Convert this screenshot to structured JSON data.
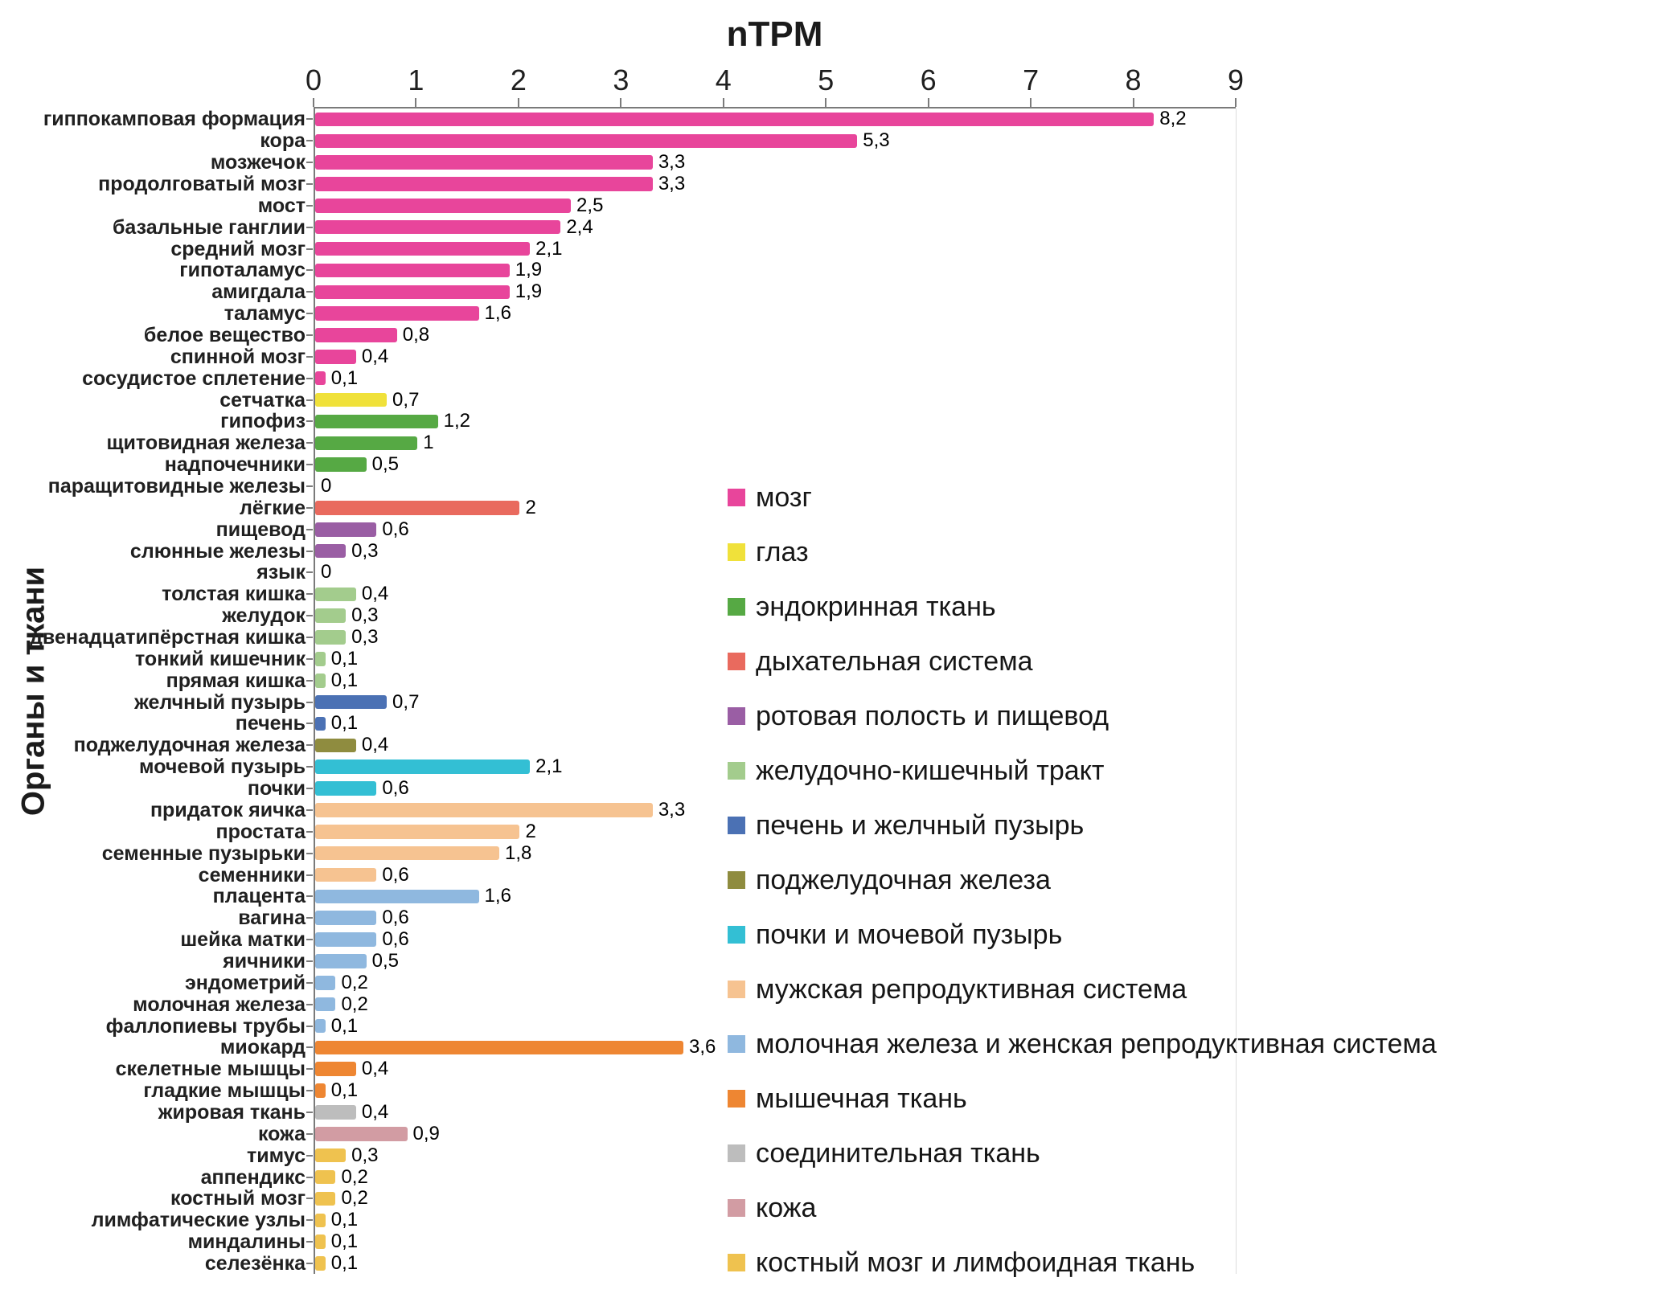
{
  "chart_data": {
    "type": "bar",
    "orientation": "horizontal",
    "title": "nTPM",
    "ylabel": "Органы и ткани",
    "xlabel": "nTPM",
    "xlim": [
      0,
      9
    ],
    "xticks": [
      0,
      1,
      2,
      3,
      4,
      5,
      6,
      7,
      8,
      9
    ],
    "grid": false,
    "legend_position": "inside-right",
    "legend": [
      {
        "label": "мозг",
        "color": "#E8459B"
      },
      {
        "label": "глаз",
        "color": "#F0E13A"
      },
      {
        "label": "эндокринная ткань",
        "color": "#56A944"
      },
      {
        "label": "дыхательная система",
        "color": "#E96A5E"
      },
      {
        "label": "ротовая полость и пищевод",
        "color": "#9A5EA4"
      },
      {
        "label": "желудочно-кишечный тракт",
        "color": "#A3CC8D"
      },
      {
        "label": "печень и желчный пузырь",
        "color": "#4B71B4"
      },
      {
        "label": "поджелудочная железа",
        "color": "#8F8C3F"
      },
      {
        "label": "почки и мочевой пузырь",
        "color": "#33BFD4"
      },
      {
        "label": "мужская репродуктивная система",
        "color": "#F6C391"
      },
      {
        "label": "молочная железа и женская репродуктивная система",
        "color": "#8FB8DF"
      },
      {
        "label": "мышечная ткань",
        "color": "#EE8632"
      },
      {
        "label": "соединительная ткань",
        "color": "#BDBDBD"
      },
      {
        "label": "кожа",
        "color": "#D29CA3"
      },
      {
        "label": "костный мозг и лимфоидная ткань",
        "color": "#EFC24F"
      }
    ],
    "bars": [
      {
        "label": "гиппокамповая формация",
        "value": 8.2,
        "display": "8,2",
        "group": "мозг"
      },
      {
        "label": "кора",
        "value": 5.3,
        "display": "5,3",
        "group": "мозг"
      },
      {
        "label": "мозжечок",
        "value": 3.3,
        "display": "3,3",
        "group": "мозг"
      },
      {
        "label": "продолговатый мозг",
        "value": 3.3,
        "display": "3,3",
        "group": "мозг"
      },
      {
        "label": "мост",
        "value": 2.5,
        "display": "2,5",
        "group": "мозг"
      },
      {
        "label": "базальные ганглии",
        "value": 2.4,
        "display": "2,4",
        "group": "мозг"
      },
      {
        "label": "средний мозг",
        "value": 2.1,
        "display": "2,1",
        "group": "мозг"
      },
      {
        "label": "гипоталамус",
        "value": 1.9,
        "display": "1,9",
        "group": "мозг"
      },
      {
        "label": "амигдала",
        "value": 1.9,
        "display": "1,9",
        "group": "мозг"
      },
      {
        "label": "таламус",
        "value": 1.6,
        "display": "1,6",
        "group": "мозг"
      },
      {
        "label": "белое вещество",
        "value": 0.8,
        "display": "0,8",
        "group": "мозг"
      },
      {
        "label": "спинной мозг",
        "value": 0.4,
        "display": "0,4",
        "group": "мозг"
      },
      {
        "label": "сосудистое сплетение",
        "value": 0.1,
        "display": "0,1",
        "group": "мозг"
      },
      {
        "label": "сетчатка",
        "value": 0.7,
        "display": "0,7",
        "group": "глаз"
      },
      {
        "label": "гипофиз",
        "value": 1.2,
        "display": "1,2",
        "group": "эндокринная ткань"
      },
      {
        "label": "щитовидная железа",
        "value": 1.0,
        "display": "1",
        "group": "эндокринная ткань"
      },
      {
        "label": "надпочечники",
        "value": 0.5,
        "display": "0,5",
        "group": "эндокринная ткань"
      },
      {
        "label": "паращитовидные железы",
        "value": 0,
        "display": "0",
        "group": "эндокринная ткань"
      },
      {
        "label": "лёгкие",
        "value": 2.0,
        "display": "2",
        "group": "дыхательная система"
      },
      {
        "label": "пищевод",
        "value": 0.6,
        "display": "0,6",
        "group": "ротовая полость и пищевод"
      },
      {
        "label": "слюнные железы",
        "value": 0.3,
        "display": "0,3",
        "group": "ротовая полость и пищевод"
      },
      {
        "label": "язык",
        "value": 0,
        "display": "0",
        "group": "ротовая полость и пищевод"
      },
      {
        "label": "толстая кишка",
        "value": 0.4,
        "display": "0,4",
        "group": "желудочно-кишечный тракт"
      },
      {
        "label": "желудок",
        "value": 0.3,
        "display": "0,3",
        "group": "желудочно-кишечный тракт"
      },
      {
        "label": "двенадцатипёрстная кишка",
        "value": 0.3,
        "display": "0,3",
        "group": "желудочно-кишечный тракт"
      },
      {
        "label": "тонкий кишечник",
        "value": 0.1,
        "display": "0,1",
        "group": "желудочно-кишечный тракт"
      },
      {
        "label": "прямая кишка",
        "value": 0.1,
        "display": "0,1",
        "group": "желудочно-кишечный тракт"
      },
      {
        "label": "желчный пузырь",
        "value": 0.7,
        "display": "0,7",
        "group": "печень и желчный пузырь"
      },
      {
        "label": "печень",
        "value": 0.1,
        "display": "0,1",
        "group": "печень и желчный пузырь"
      },
      {
        "label": "поджелудочная железа",
        "value": 0.4,
        "display": "0,4",
        "group": "поджелудочная железа"
      },
      {
        "label": "мочевой пузырь",
        "value": 2.1,
        "display": "2,1",
        "group": "почки и мочевой пузырь"
      },
      {
        "label": "почки",
        "value": 0.6,
        "display": "0,6",
        "group": "почки и мочевой пузырь"
      },
      {
        "label": "придаток яичка",
        "value": 3.3,
        "display": "3,3",
        "group": "мужская репродуктивная система"
      },
      {
        "label": "простата",
        "value": 2.0,
        "display": "2",
        "group": "мужская репродуктивная система"
      },
      {
        "label": "семенные пузырьки",
        "value": 1.8,
        "display": "1,8",
        "group": "мужская репродуктивная система"
      },
      {
        "label": "семенники",
        "value": 0.6,
        "display": "0,6",
        "group": "мужская репродуктивная система"
      },
      {
        "label": "плацента",
        "value": 1.6,
        "display": "1,6",
        "group": "молочная железа и женская репродуктивная система"
      },
      {
        "label": "вагина",
        "value": 0.6,
        "display": "0,6",
        "group": "молочная железа и женская репродуктивная система"
      },
      {
        "label": "шейка матки",
        "value": 0.6,
        "display": "0,6",
        "group": "молочная железа и женская репродуктивная система"
      },
      {
        "label": "яичники",
        "value": 0.5,
        "display": "0,5",
        "group": "молочная железа и женская репродуктивная система"
      },
      {
        "label": "эндометрий",
        "value": 0.2,
        "display": "0,2",
        "group": "молочная железа и женская репродуктивная система"
      },
      {
        "label": "молочная железа",
        "value": 0.2,
        "display": "0,2",
        "group": "молочная железа и женская репродуктивная система"
      },
      {
        "label": "фаллопиевы трубы",
        "value": 0.1,
        "display": "0,1",
        "group": "молочная железа и женская репродуктивная система"
      },
      {
        "label": "миокард",
        "value": 3.6,
        "display": "3,6",
        "group": "мышечная ткань"
      },
      {
        "label": "скелетные мышцы",
        "value": 0.4,
        "display": "0,4",
        "group": "мышечная ткань"
      },
      {
        "label": "гладкие мышцы",
        "value": 0.1,
        "display": "0,1",
        "group": "мышечная ткань"
      },
      {
        "label": "жировая ткань",
        "value": 0.4,
        "display": "0,4",
        "group": "соединительная ткань"
      },
      {
        "label": "кожа",
        "value": 0.9,
        "display": "0,9",
        "group": "кожа"
      },
      {
        "label": "тимус",
        "value": 0.3,
        "display": "0,3",
        "group": "костный мозг и лимфоидная ткань"
      },
      {
        "label": "аппендикс",
        "value": 0.2,
        "display": "0,2",
        "group": "костный мозг и лимфоидная ткань"
      },
      {
        "label": "костный мозг",
        "value": 0.2,
        "display": "0,2",
        "group": "костный мозг и лимфоидная ткань"
      },
      {
        "label": "лимфатические узлы",
        "value": 0.1,
        "display": "0,1",
        "group": "костный мозг и лимфоидная ткань"
      },
      {
        "label": "миндалины",
        "value": 0.1,
        "display": "0,1",
        "group": "костный мозг и лимфоидная ткань"
      },
      {
        "label": "селезёнка",
        "value": 0.1,
        "display": "0,1",
        "group": "костный мозг и лимфоидная ткань"
      }
    ]
  }
}
